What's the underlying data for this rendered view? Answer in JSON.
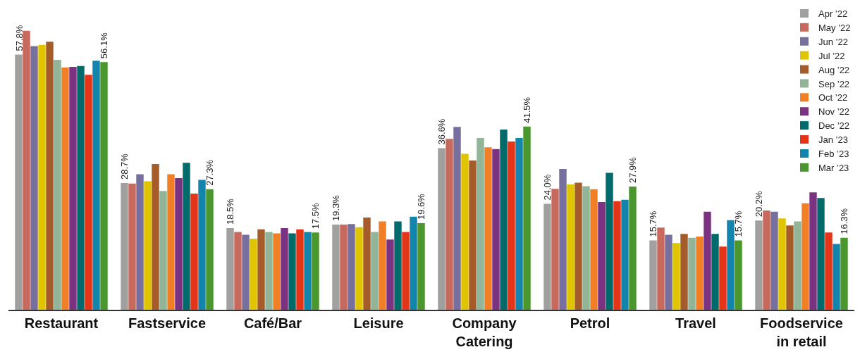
{
  "chart_data": {
    "type": "bar",
    "categories": [
      "Restaurant",
      "Fastservice",
      "Café/Bar",
      "Leisure",
      "Company\nCatering",
      "Petrol",
      "Travel",
      "Foodservice\nin retail"
    ],
    "legend": "top right",
    "series": [
      {
        "name": "Apr ’22",
        "color": "#a0a09f",
        "values": [
          57.8,
          28.7,
          18.5,
          19.3,
          36.6,
          24.0,
          15.7,
          20.2
        ],
        "value_labels": [
          "57.8%",
          "28.7%",
          "18.5%",
          "19.3%",
          "36.6%",
          "24.0%",
          "15.7%",
          "20.2%"
        ]
      },
      {
        "name": "May ’22",
        "color": "#c8695e",
        "values": [
          63.2,
          28.6,
          17.6,
          19.3,
          38.7,
          27.4,
          18.6,
          22.5
        ]
      },
      {
        "name": "Jun ’22",
        "color": "#776f9e",
        "values": [
          59.7,
          30.7,
          17.0,
          19.4,
          41.4,
          31.9,
          17.0,
          22.2
        ]
      },
      {
        "name": "Jul ’22",
        "color": "#e0c400",
        "values": [
          60.0,
          29.1,
          16.1,
          18.7,
          35.3,
          28.4,
          15.1,
          20.7
        ]
      },
      {
        "name": "Aug ’22",
        "color": "#a65c2a",
        "values": [
          60.7,
          33.0,
          18.2,
          20.9,
          33.8,
          28.8,
          17.2,
          19.1
        ]
      },
      {
        "name": "Sep ’22",
        "color": "#92b597",
        "values": [
          56.6,
          26.9,
          17.6,
          17.6,
          38.9,
          28.0,
          16.3,
          20.0
        ]
      },
      {
        "name": "Oct ’22",
        "color": "#f07f26",
        "values": [
          54.9,
          30.7,
          17.3,
          20.0,
          36.8,
          27.3,
          16.6,
          24.1
        ]
      },
      {
        "name": "Nov ’22",
        "color": "#7b3381",
        "values": [
          55.0,
          29.8,
          18.5,
          15.9,
          36.4,
          24.4,
          22.2,
          26.6
        ]
      },
      {
        "name": "Dec ’22",
        "color": "#006b6a",
        "values": [
          55.2,
          33.3,
          17.3,
          20.0,
          40.8,
          31.0,
          17.2,
          25.3
        ]
      },
      {
        "name": "Jan ’23",
        "color": "#e53518",
        "values": [
          53.2,
          26.3,
          18.2,
          17.6,
          38.1,
          24.6,
          14.3,
          17.5
        ]
      },
      {
        "name": "Feb ’23",
        "color": "#1384ab",
        "values": [
          56.4,
          29.4,
          17.6,
          21.1,
          38.9,
          24.9,
          20.3,
          14.9
        ]
      },
      {
        "name": "Mar ’23",
        "color": "#4a962f",
        "values": [
          56.1,
          27.3,
          17.5,
          19.6,
          41.5,
          27.9,
          15.7,
          16.3
        ],
        "value_labels": [
          "56.1%",
          "27.3%",
          "17.5%",
          "19.6%",
          "41.5%",
          "27.9%",
          "15.7%",
          "16.3%"
        ]
      }
    ]
  }
}
